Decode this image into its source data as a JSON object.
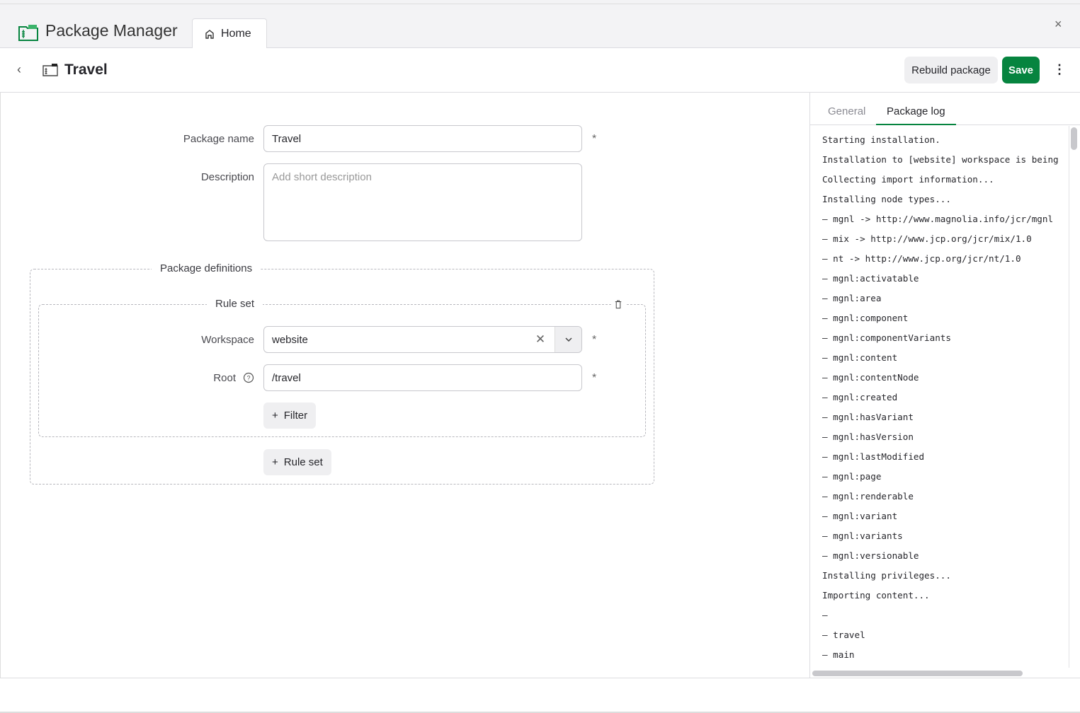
{
  "app": {
    "title": "Package Manager",
    "tab_home": "Home",
    "close": "×"
  },
  "toolbar": {
    "back": "‹",
    "title": "Travel",
    "rebuild": "Rebuild package",
    "save": "Save",
    "more": "⋮"
  },
  "form": {
    "package_name_label": "Package name",
    "package_name_value": "Travel",
    "description_label": "Description",
    "description_placeholder": "Add short description",
    "required": "*",
    "definitions_legend": "Package definitions",
    "ruleset_legend": "Rule set",
    "workspace_label": "Workspace",
    "workspace_value": "website",
    "root_label": "Root",
    "root_value": "/travel",
    "filter_button": "Filter",
    "ruleset_button": "Rule set"
  },
  "panel": {
    "tabs": [
      {
        "label": "General",
        "active": false
      },
      {
        "label": "Package log",
        "active": true
      }
    ],
    "log": [
      "Starting installation.",
      "Installation to [website] workspace is being",
      "Collecting import information...",
      "Installing node types...",
      "– mgnl -> http://www.magnolia.info/jcr/mgnl",
      "– mix -> http://www.jcp.org/jcr/mix/1.0",
      "– nt -> http://www.jcp.org/jcr/nt/1.0",
      "– mgnl:activatable",
      "– mgnl:area",
      "– mgnl:component",
      "– mgnl:componentVariants",
      "– mgnl:content",
      "– mgnl:contentNode",
      "– mgnl:created",
      "– mgnl:hasVariant",
      "– mgnl:hasVersion",
      "– mgnl:lastModified",
      "– mgnl:page",
      "– mgnl:renderable",
      "– mgnl:variant",
      "– mgnl:variants",
      "– mgnl:versionable",
      "Installing privileges...",
      "Importing content...",
      "–",
      "– travel",
      "– main"
    ]
  },
  "colors": {
    "accent": "#06843f",
    "brand_icon": "#3bb36a"
  }
}
